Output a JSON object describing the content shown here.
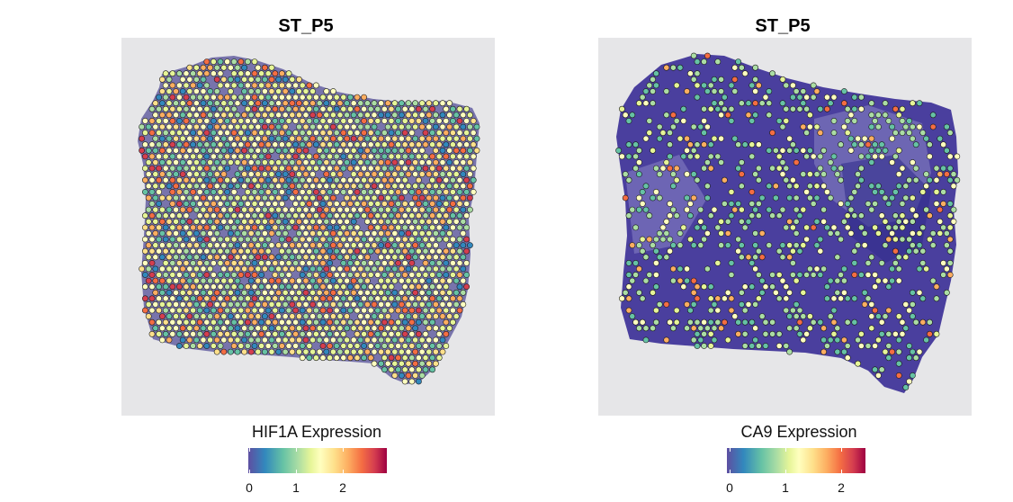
{
  "panels": [
    {
      "id": "hif1a",
      "title": "ST_P5",
      "legend_title": "HIF1A Expression",
      "ticks": [
        "0",
        "1",
        "2"
      ],
      "tissue_fill": "#6f6aa6",
      "spot_density": 0.97,
      "expression_level": "high"
    },
    {
      "id": "ca9",
      "title": "ST_P5",
      "legend_title": "CA9 Expression",
      "ticks": [
        "0",
        "1",
        "2"
      ],
      "tissue_fill": "#4a3f9e",
      "spot_density": 0.38,
      "expression_level": "low"
    }
  ],
  "colors": {
    "background_slide": "#e6e6e8",
    "spectral_low": "#5e4fa2",
    "spectral_mid": "#ffffbf",
    "spectral_high": "#9e0142"
  }
}
